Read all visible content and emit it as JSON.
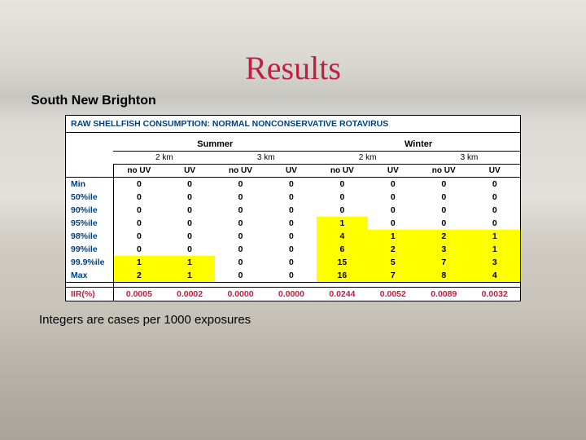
{
  "title": "Results",
  "subtitle": "South New Brighton",
  "table_title": "RAW SHELLFISH CONSUMPTION: NORMAL NONCONSERVATIVE ROTAVIRUS",
  "seasons": [
    "Summer",
    "Winter"
  ],
  "distances": [
    "2 km",
    "3 km",
    "2 km",
    "3 km"
  ],
  "uv_headers": [
    "no UV",
    "UV",
    "no UV",
    "UV",
    "no UV",
    "UV",
    "no UV",
    "UV"
  ],
  "row_labels": [
    "Min",
    "50%ile",
    "90%ile",
    "95%ile",
    "98%ile",
    "99%ile",
    "99.9%ile",
    "Max"
  ],
  "iir_label": "IIR(%)",
  "rows": [
    {
      "v": [
        "0",
        "0",
        "0",
        "0",
        "0",
        "0",
        "0",
        "0"
      ],
      "hl": [
        0,
        0,
        0,
        0,
        0,
        0,
        0,
        0
      ]
    },
    {
      "v": [
        "0",
        "0",
        "0",
        "0",
        "0",
        "0",
        "0",
        "0"
      ],
      "hl": [
        0,
        0,
        0,
        0,
        0,
        0,
        0,
        0
      ]
    },
    {
      "v": [
        "0",
        "0",
        "0",
        "0",
        "0",
        "0",
        "0",
        "0"
      ],
      "hl": [
        0,
        0,
        0,
        0,
        0,
        0,
        0,
        0
      ]
    },
    {
      "v": [
        "0",
        "0",
        "0",
        "0",
        "1",
        "0",
        "0",
        "0"
      ],
      "hl": [
        0,
        0,
        0,
        0,
        1,
        0,
        0,
        0
      ]
    },
    {
      "v": [
        "0",
        "0",
        "0",
        "0",
        "4",
        "1",
        "2",
        "1"
      ],
      "hl": [
        0,
        0,
        0,
        0,
        1,
        1,
        1,
        1
      ]
    },
    {
      "v": [
        "0",
        "0",
        "0",
        "0",
        "6",
        "2",
        "3",
        "1"
      ],
      "hl": [
        0,
        0,
        0,
        0,
        1,
        1,
        1,
        1
      ]
    },
    {
      "v": [
        "1",
        "1",
        "0",
        "0",
        "15",
        "5",
        "7",
        "3"
      ],
      "hl": [
        1,
        1,
        0,
        0,
        1,
        1,
        1,
        1
      ]
    },
    {
      "v": [
        "2",
        "1",
        "0",
        "0",
        "16",
        "7",
        "8",
        "4"
      ],
      "hl": [
        1,
        1,
        0,
        0,
        1,
        1,
        1,
        1
      ]
    }
  ],
  "iir": [
    "0.0005",
    "0.0002",
    "0.0000",
    "0.0000",
    "0.0244",
    "0.0052",
    "0.0089",
    "0.0032"
  ],
  "footnote": "Integers are cases per 1000 exposures",
  "colors": {
    "title": "#c02040",
    "header_text": "#004080",
    "highlight": "#ffff00",
    "iir_text": "#c02040",
    "border": "#000000",
    "table_bg": "#ffffff"
  },
  "fontsize": {
    "title": 40,
    "subtitle": 16,
    "table_title": 10.5,
    "cell": 10.5,
    "footnote": 15
  }
}
